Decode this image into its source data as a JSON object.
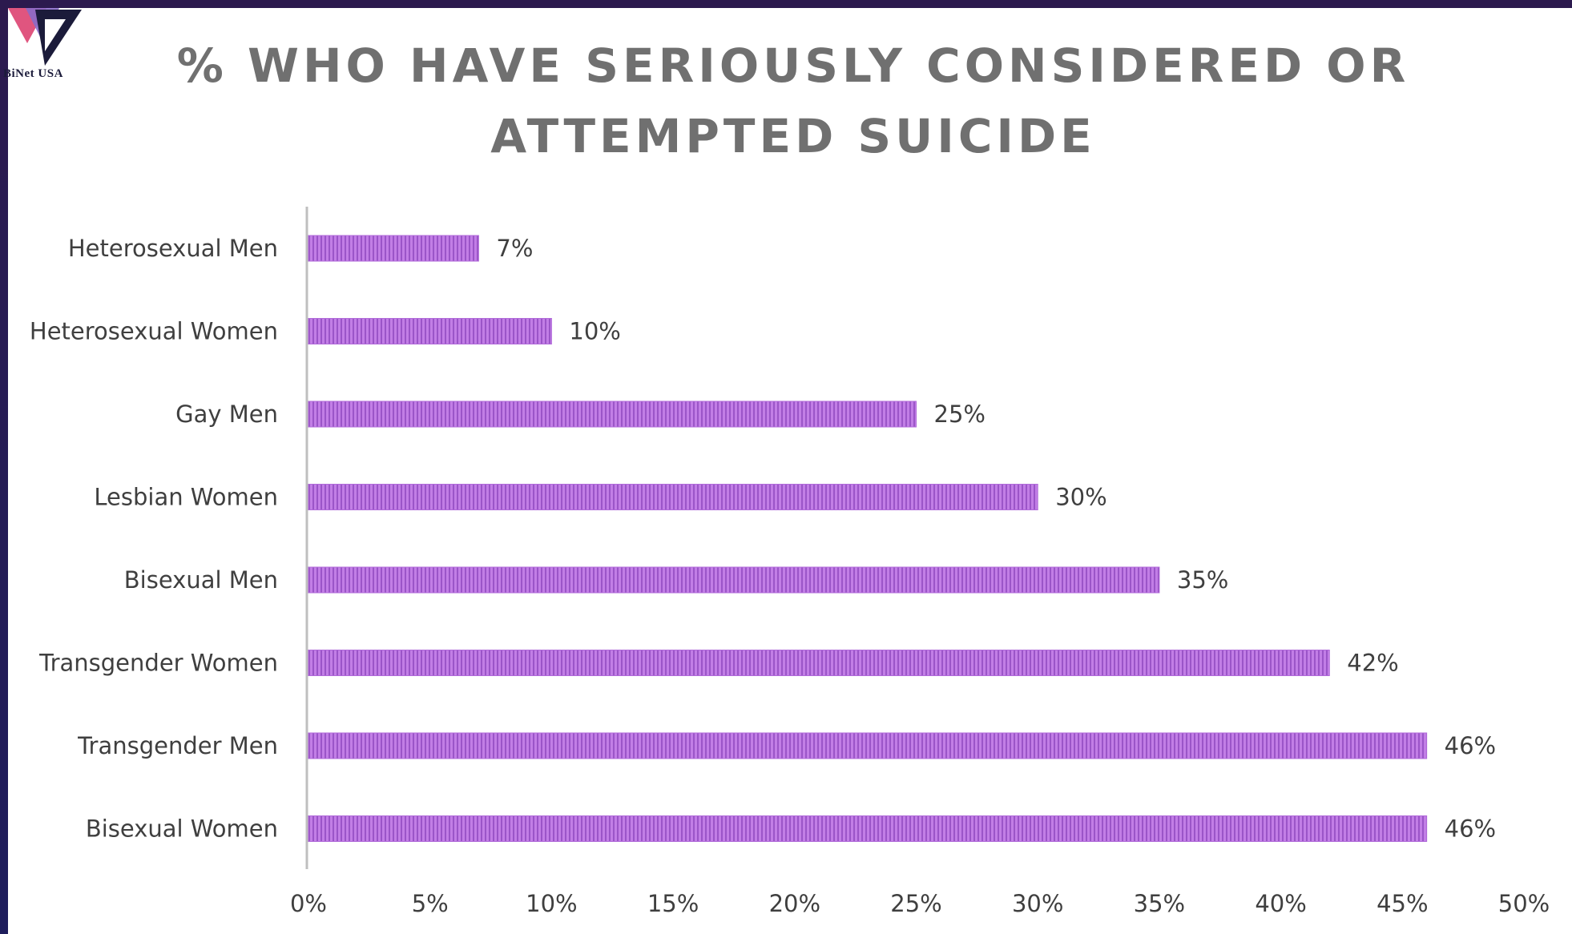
{
  "logo": {
    "text": "BiNet USA",
    "colors": {
      "navy": "#1b1b3a",
      "pink": "#e0557f",
      "purple": "#8a6cc9"
    }
  },
  "chart_data": {
    "type": "bar",
    "orientation": "horizontal",
    "title": "% WHO HAVE SERIOUSLY CONSIDERED OR ATTEMPTED SUICIDE",
    "categories": [
      "Heterosexual Men",
      "Heterosexual Women",
      "Gay Men",
      "Lesbian Women",
      "Bisexual Men",
      "Transgender Women",
      "Transgender Men",
      "Bisexual Women"
    ],
    "values": [
      7,
      10,
      25,
      30,
      35,
      42,
      46,
      46
    ],
    "value_labels": [
      "7%",
      "10%",
      "25%",
      "30%",
      "35%",
      "42%",
      "46%",
      "46%"
    ],
    "xlim": [
      0,
      50
    ],
    "x_ticks": [
      0,
      5,
      10,
      15,
      20,
      25,
      30,
      35,
      40,
      45,
      50
    ],
    "x_tick_labels": [
      "0%",
      "5%",
      "10%",
      "15%",
      "20%",
      "25%",
      "30%",
      "35%",
      "40%",
      "45%",
      "50%"
    ],
    "grid": false,
    "legend": "none",
    "bar_color": "#c27ee6",
    "bar_stripe_color": "#9b55c8"
  }
}
